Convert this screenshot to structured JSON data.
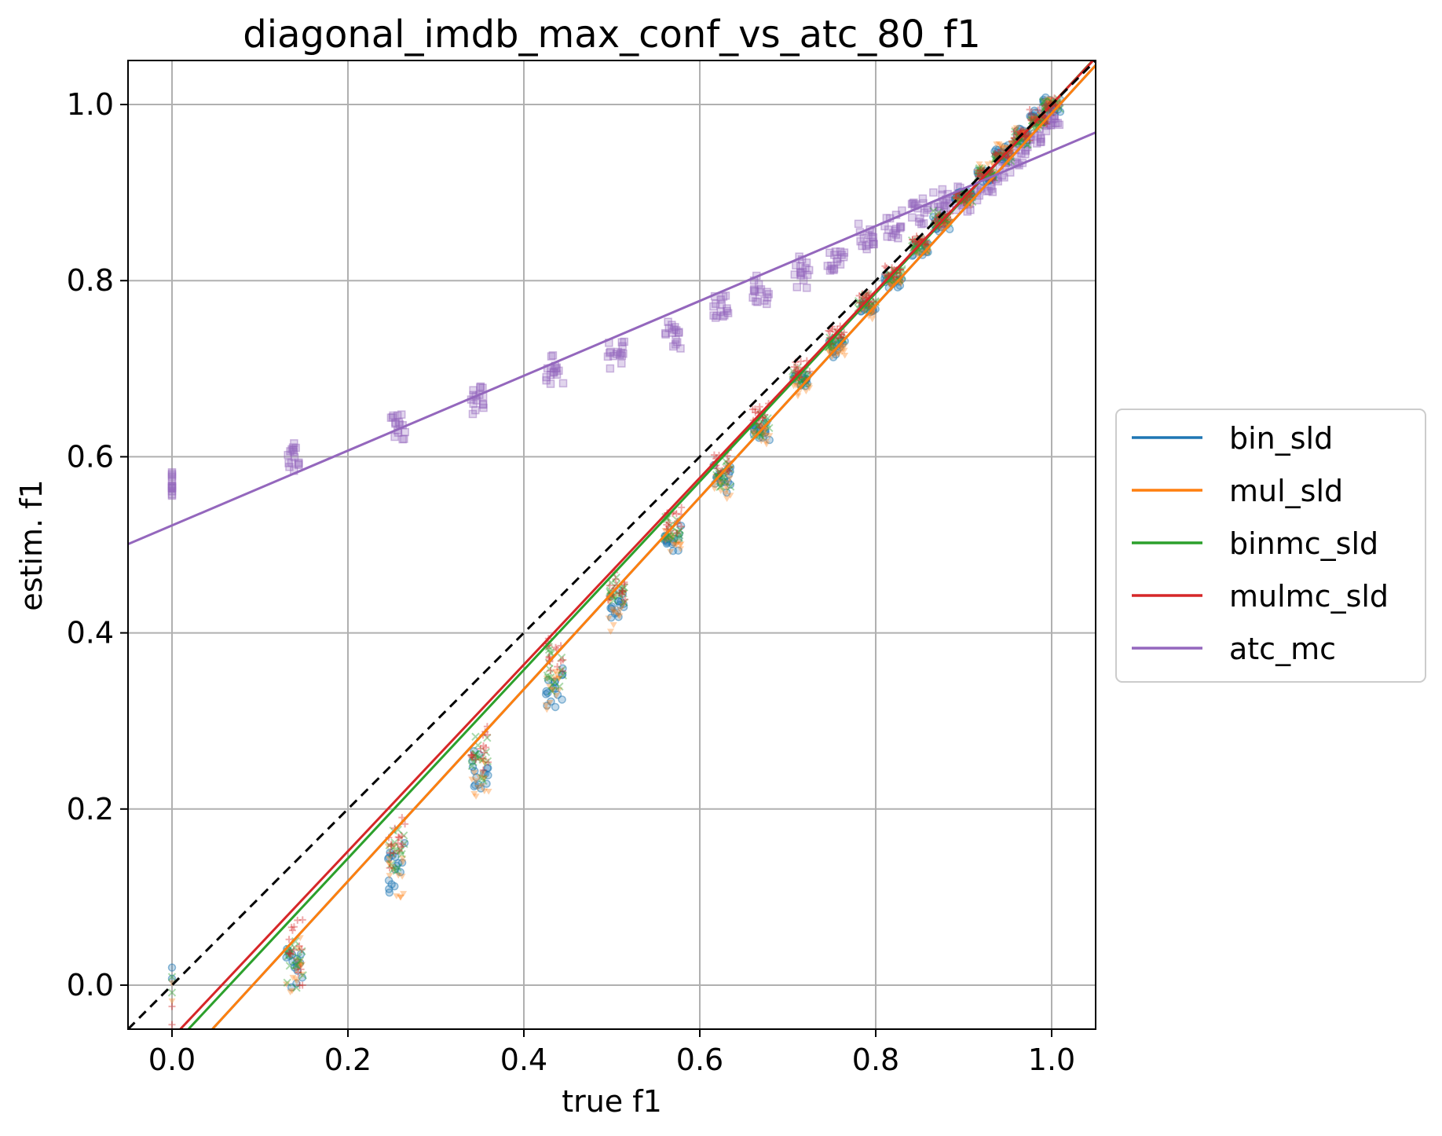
{
  "chart_data": {
    "type": "scatter",
    "title": "diagonal_imdb_max_conf_vs_atc_80_f1",
    "xlabel": "true f1",
    "ylabel": "estim. f1",
    "xlim": [
      -0.05,
      1.05
    ],
    "ylim": [
      -0.05,
      1.05
    ],
    "xticks": [
      0.0,
      0.2,
      0.4,
      0.6,
      0.8,
      1.0
    ],
    "yticks": [
      0.0,
      0.2,
      0.4,
      0.6,
      0.8,
      1.0
    ],
    "xtick_labels": [
      "0.0",
      "0.2",
      "0.4",
      "0.6",
      "0.8",
      "1.0"
    ],
    "ytick_labels": [
      "0.0",
      "0.2",
      "0.4",
      "0.6",
      "0.8",
      "1.0"
    ],
    "grid": true,
    "legend_position": "right, outside",
    "reference_line": {
      "style": "dashed",
      "color": "#000000",
      "x": [
        -0.05,
        1.05
      ],
      "y": [
        -0.05,
        1.05
      ]
    },
    "x_clusters": [
      0.0,
      0.14,
      0.255,
      0.35,
      0.435,
      0.505,
      0.57,
      0.625,
      0.67,
      0.715,
      0.755,
      0.79,
      0.82,
      0.85,
      0.875,
      0.9,
      0.925,
      0.945,
      0.965,
      0.985,
      1.0
    ],
    "series": [
      {
        "name": "bin_sld",
        "color": "#1f77b4",
        "marker": "circle",
        "fit_line": {
          "slope": 1.09,
          "intercept": -0.1
        },
        "points_y": [
          0.0,
          0.02,
          0.13,
          0.24,
          0.34,
          0.43,
          0.51,
          0.575,
          0.63,
          0.685,
          0.725,
          0.77,
          0.8,
          0.835,
          0.865,
          0.895,
          0.92,
          0.945,
          0.965,
          0.985,
          1.0
        ]
      },
      {
        "name": "mul_sld",
        "color": "#ff7f0e",
        "marker": "triangle-down",
        "fit_line": {
          "slope": 1.09,
          "intercept": -0.1
        },
        "points_y": [
          0.0,
          0.02,
          0.13,
          0.235,
          0.335,
          0.425,
          0.505,
          0.57,
          0.625,
          0.68,
          0.72,
          0.765,
          0.8,
          0.835,
          0.865,
          0.89,
          0.925,
          0.95,
          0.965,
          0.985,
          1.0
        ]
      },
      {
        "name": "binmc_sld",
        "color": "#2ca02c",
        "marker": "x",
        "fit_line": {
          "slope": 1.07,
          "intercept": -0.07
        },
        "points_y": [
          0.0,
          0.03,
          0.15,
          0.26,
          0.36,
          0.445,
          0.52,
          0.58,
          0.635,
          0.69,
          0.73,
          0.775,
          0.805,
          0.84,
          0.87,
          0.895,
          0.92,
          0.94,
          0.96,
          0.98,
          1.0
        ]
      },
      {
        "name": "mulmc_sld",
        "color": "#d62728",
        "marker": "plus",
        "fit_line": {
          "slope": 1.06,
          "intercept": -0.06
        },
        "points_y": [
          0.0,
          0.04,
          0.16,
          0.27,
          0.37,
          0.455,
          0.53,
          0.59,
          0.645,
          0.7,
          0.74,
          0.78,
          0.81,
          0.845,
          0.87,
          0.895,
          0.92,
          0.945,
          0.965,
          0.985,
          1.0
        ]
      },
      {
        "name": "atc_mc",
        "color": "#9467bd",
        "marker": "square",
        "fit_line": {
          "slope": 0.425,
          "intercept": 0.522
        },
        "points_y": [
          0.565,
          0.6,
          0.635,
          0.665,
          0.695,
          0.715,
          0.74,
          0.765,
          0.79,
          0.81,
          0.825,
          0.845,
          0.86,
          0.875,
          0.885,
          0.895,
          0.91,
          0.93,
          0.95,
          0.965,
          0.985
        ]
      }
    ]
  }
}
